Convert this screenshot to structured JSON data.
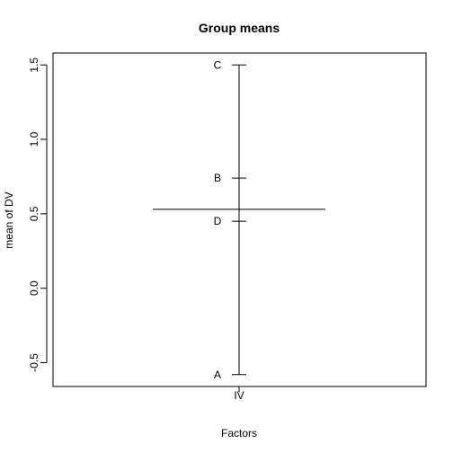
{
  "chart_data": {
    "type": "line",
    "title": "Group means",
    "xlabel": "Factors",
    "ylabel": "mean of DV",
    "ylim": [
      -0.66,
      1.58
    ],
    "y_ticks": [
      -0.5,
      0.0,
      0.5,
      1.0,
      1.5
    ],
    "y_tick_labels": [
      "-0.5",
      "0.0",
      "0.5",
      "1.0",
      "1.5"
    ],
    "grid": false,
    "factor": "IV",
    "grand_mean": 0.53,
    "levels": [
      {
        "label": "C",
        "value": 1.5
      },
      {
        "label": "B",
        "value": 0.74
      },
      {
        "label": "D",
        "value": 0.45
      },
      {
        "label": "A",
        "value": -0.58
      }
    ]
  }
}
